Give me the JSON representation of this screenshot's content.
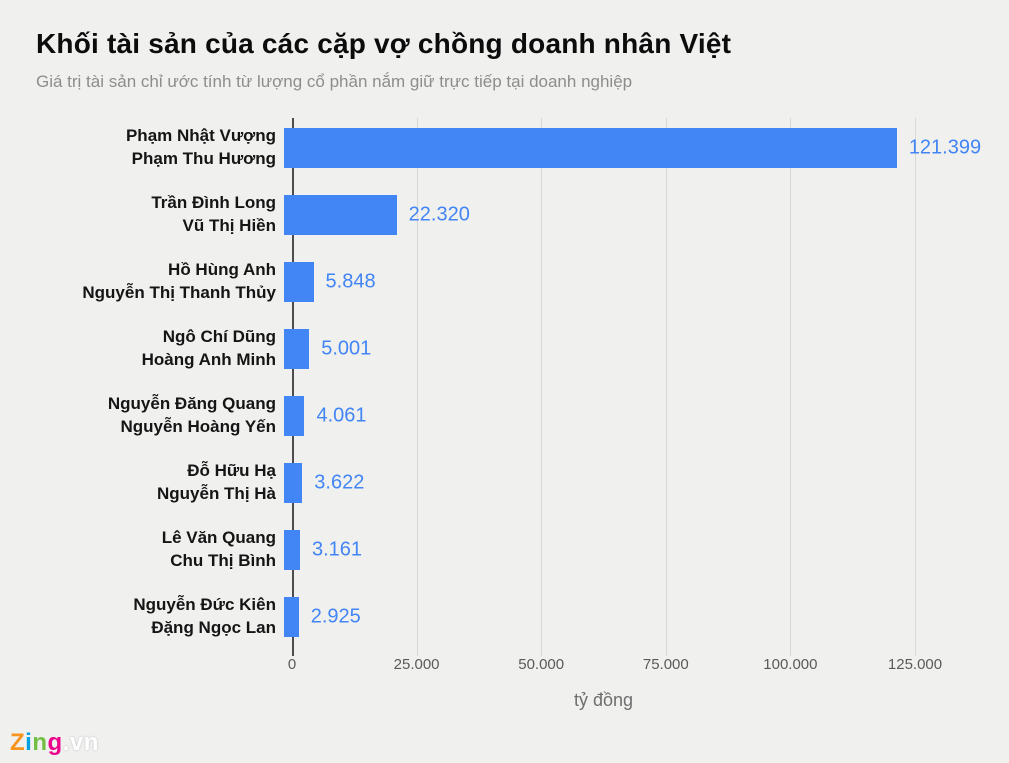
{
  "header": {
    "title": "Khối tài sản của các cặp vợ chồng doanh nhân Việt",
    "subtitle": "Giá trị tài sản chỉ ước tính từ lượng cổ phần nắm giữ trực tiếp tại doanh nghiệp"
  },
  "chart_data": {
    "type": "bar",
    "orientation": "horizontal",
    "title": "Khối tài sản của các cặp vợ chồng doanh nhân Việt",
    "subtitle": "Giá trị tài sản chỉ ước tính từ lượng cổ phần nắm giữ trực tiếp tại doanh nghiệp",
    "categories": [
      [
        "Phạm Nhật Vượng",
        "Phạm Thu Hương"
      ],
      [
        "Trần Đình Long",
        "Vũ Thị Hiền"
      ],
      [
        "Hồ Hùng Anh",
        "Nguyễn Thị Thanh Thủy"
      ],
      [
        "Ngô Chí Dũng",
        "Hoàng Anh Minh"
      ],
      [
        "Nguyễn Đăng Quang",
        "Nguyễn Hoàng Yến"
      ],
      [
        "Đỗ Hữu Hạ",
        "Nguyễn Thị Hà"
      ],
      [
        "Lê Văn Quang",
        "Chu Thị Bình"
      ],
      [
        "Nguyễn Đức Kiên",
        "Đặng Ngọc Lan"
      ]
    ],
    "values": [
      121399,
      22320,
      5848,
      5001,
      4061,
      3622,
      3161,
      2925
    ],
    "value_labels": [
      "121.399",
      "22.320",
      "5.848",
      "5.001",
      "4.061",
      "3.622",
      "3.161",
      "2.925"
    ],
    "xlabel": "tỷ đồng",
    "ylabel": "",
    "xlim": [
      0,
      125000
    ],
    "xticks": [
      0,
      25000,
      50000,
      75000,
      100000,
      125000
    ],
    "xtick_labels": [
      "0",
      "25.000",
      "50.000",
      "75.000",
      "100.000",
      "125.000"
    ],
    "bar_color": "#4285f4",
    "value_color": "#4285f4",
    "grid": true,
    "legend": false
  },
  "footer": {
    "logo": {
      "letters": [
        {
          "char": "Z",
          "color": "#f7941e"
        },
        {
          "char": "i",
          "color": "#00a0e3"
        },
        {
          "char": "n",
          "color": "#72bf44"
        },
        {
          "char": "g",
          "color": "#ec008c"
        }
      ],
      "suffix": ".vn"
    }
  }
}
